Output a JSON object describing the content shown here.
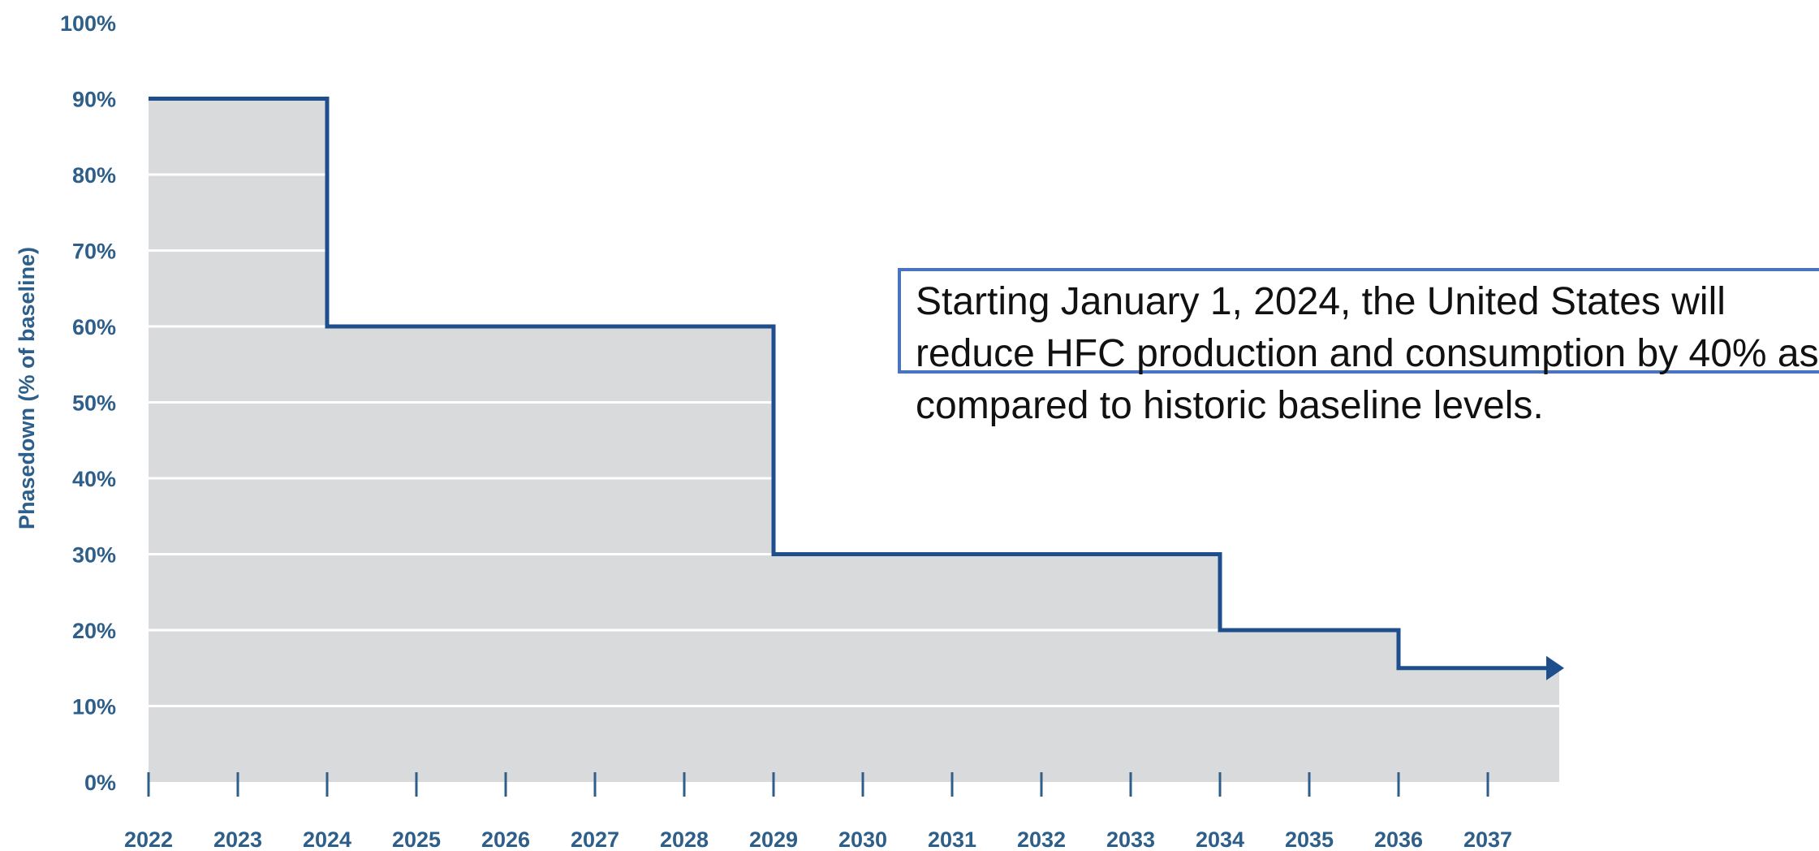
{
  "chart_data": {
    "type": "line",
    "step": true,
    "title": "",
    "xlabel": "",
    "ylabel": "Phasedown (% of baseline)",
    "x_categories": [
      "2022",
      "2023",
      "2024",
      "2025",
      "2026",
      "2027",
      "2028",
      "2029",
      "2030",
      "2031",
      "2032",
      "2033",
      "2034",
      "2035",
      "2036",
      "2037"
    ],
    "y_ticks": [
      "0%",
      "10%",
      "20%",
      "30%",
      "40%",
      "50%",
      "60%",
      "70%",
      "80%",
      "90%",
      "100%"
    ],
    "ylim": [
      0,
      100
    ],
    "series": [
      {
        "points": [
          {
            "x": 2022,
            "y": 90
          },
          {
            "x": 2024,
            "y": 60
          },
          {
            "x": 2029,
            "y": 30
          },
          {
            "x": 2034,
            "y": 20
          },
          {
            "x": 2036,
            "y": 15
          }
        ],
        "end_x": 2037.8,
        "arrow_at_end": true
      }
    ],
    "colors": {
      "line": "#1f4e8c",
      "area_fill": "#d9dadc",
      "gridline": "#ffffff",
      "tick_text": "#2d5f8a"
    },
    "grid": true,
    "annotation": "Starting January 1, 2024, the United States will reduce HFC production and consumption by 40% as compared to historic baseline levels."
  }
}
